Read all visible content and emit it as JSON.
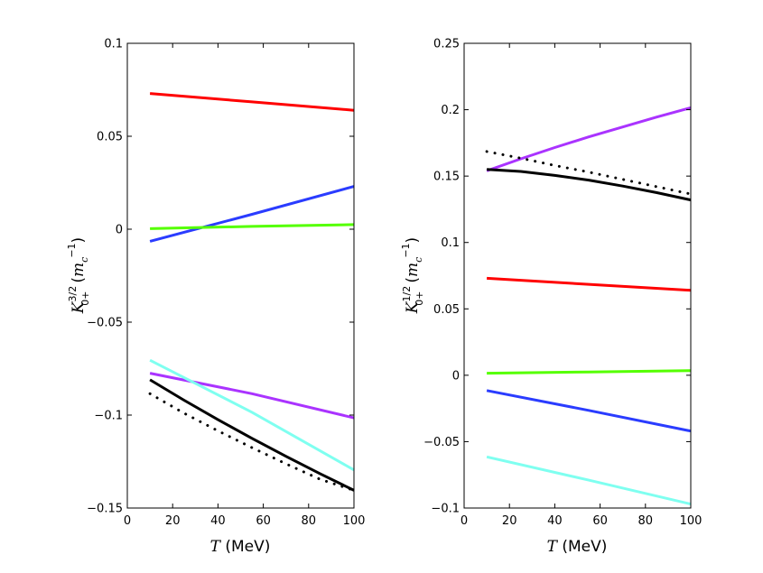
{
  "chart_data": [
    {
      "type": "line",
      "id": "left",
      "title": "",
      "xlabel": {
        "var": "T",
        "unit": " (MeV)"
      },
      "ylabel": {
        "base": "K",
        "sup": "3/2",
        "sub": "0+",
        "unit_base": "m",
        "unit_sub": "c",
        "unit_sup": "−1"
      },
      "xlim": [
        0,
        100
      ],
      "ylim": [
        -0.15,
        0.1
      ],
      "xticks": [
        0,
        20,
        40,
        60,
        80,
        100
      ],
      "xtick_labels": [
        "0",
        "20",
        "40",
        "60",
        "80",
        "100"
      ],
      "yticks": [
        -0.15,
        -0.1,
        -0.05,
        0,
        0.05,
        0.1
      ],
      "ytick_labels": [
        "−0.15",
        "−0.1",
        "−0.05",
        "0",
        "0.05",
        "0.1"
      ],
      "grid": false,
      "series": [
        {
          "name": "red",
          "color": "#ff0000",
          "style": "solid",
          "x": [
            10,
            55,
            100
          ],
          "y": [
            0.073,
            0.0685,
            0.064
          ]
        },
        {
          "name": "blue",
          "color": "#2a3cff",
          "style": "solid",
          "x": [
            10,
            55,
            100
          ],
          "y": [
            -0.0065,
            0.008,
            0.023
          ]
        },
        {
          "name": "green",
          "color": "#55ff00",
          "style": "solid",
          "x": [
            10,
            55,
            100
          ],
          "y": [
            0.0003,
            0.0015,
            0.0025
          ]
        },
        {
          "name": "violet",
          "color": "#aa33ff",
          "style": "solid",
          "x": [
            10,
            55,
            100
          ],
          "y": [
            -0.0775,
            -0.0885,
            -0.1015
          ]
        },
        {
          "name": "cyan",
          "color": "#7ffff0",
          "style": "solid",
          "x": [
            10,
            55,
            100
          ],
          "y": [
            -0.0705,
            -0.0985,
            -0.1295
          ]
        },
        {
          "name": "black",
          "color": "#000000",
          "style": "solid",
          "x": [
            10,
            25,
            40,
            55,
            70,
            85,
            100
          ],
          "y": [
            -0.081,
            -0.092,
            -0.1025,
            -0.1125,
            -0.1222,
            -0.1315,
            -0.1405
          ]
        },
        {
          "name": "black-dotted",
          "color": "#000000",
          "style": "dotted",
          "x": [
            10,
            25,
            40,
            55,
            70,
            85,
            100
          ],
          "y": [
            -0.0885,
            -0.099,
            -0.1085,
            -0.1175,
            -0.1262,
            -0.1345,
            -0.1405
          ]
        }
      ]
    },
    {
      "type": "line",
      "id": "right",
      "title": "",
      "xlabel": {
        "var": "T",
        "unit": " (MeV)"
      },
      "ylabel": {
        "base": "K",
        "sup": "1/2",
        "sub": "0+",
        "unit_base": "m",
        "unit_sub": "c",
        "unit_sup": "−1"
      },
      "xlim": [
        0,
        100
      ],
      "ylim": [
        -0.1,
        0.25
      ],
      "xticks": [
        0,
        20,
        40,
        60,
        80,
        100
      ],
      "xtick_labels": [
        "0",
        "20",
        "40",
        "60",
        "80",
        "100"
      ],
      "yticks": [
        -0.1,
        -0.05,
        0,
        0.05,
        0.1,
        0.15,
        0.2,
        0.25
      ],
      "ytick_labels": [
        "−0.1",
        "−0.05",
        "0",
        "0.05",
        "0.1",
        "0.15",
        "0.2",
        "0.25"
      ],
      "grid": false,
      "series": [
        {
          "name": "violet",
          "color": "#aa33ff",
          "style": "solid",
          "x": [
            10,
            25,
            40,
            55,
            70,
            85,
            100
          ],
          "y": [
            0.154,
            0.163,
            0.1715,
            0.1795,
            0.187,
            0.1945,
            0.2015
          ]
        },
        {
          "name": "black",
          "color": "#000000",
          "style": "solid",
          "x": [
            10,
            25,
            40,
            55,
            70,
            85,
            100
          ],
          "y": [
            0.155,
            0.1535,
            0.1505,
            0.147,
            0.1425,
            0.1375,
            0.132
          ]
        },
        {
          "name": "black-dotted",
          "color": "#000000",
          "style": "dotted",
          "x": [
            10,
            25,
            40,
            55,
            70,
            85,
            100
          ],
          "y": [
            0.1685,
            0.1635,
            0.158,
            0.153,
            0.1475,
            0.142,
            0.1365
          ]
        },
        {
          "name": "red",
          "color": "#ff0000",
          "style": "solid",
          "x": [
            10,
            55,
            100
          ],
          "y": [
            0.073,
            0.0685,
            0.064
          ]
        },
        {
          "name": "green",
          "color": "#55ff00",
          "style": "solid",
          "x": [
            10,
            55,
            100
          ],
          "y": [
            0.0015,
            0.0025,
            0.0035
          ]
        },
        {
          "name": "blue",
          "color": "#2a3cff",
          "style": "solid",
          "x": [
            10,
            55,
            100
          ],
          "y": [
            -0.0115,
            -0.0265,
            -0.042
          ]
        },
        {
          "name": "cyan",
          "color": "#7ffff0",
          "style": "solid",
          "x": [
            10,
            55,
            100
          ],
          "y": [
            -0.0615,
            -0.079,
            -0.097
          ]
        }
      ]
    }
  ]
}
